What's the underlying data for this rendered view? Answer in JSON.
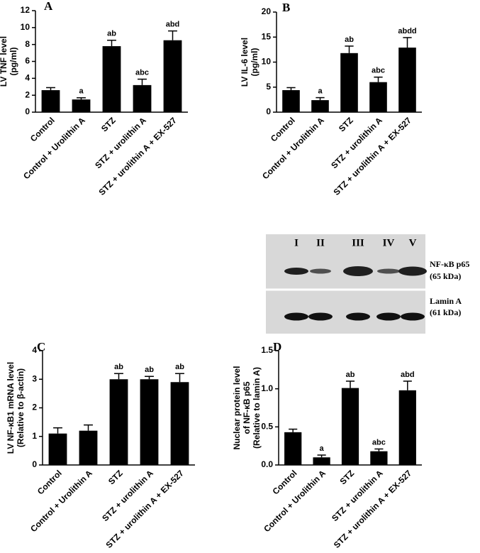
{
  "chart_data": [
    {
      "type": "bar",
      "title": "A",
      "ylabel": [
        "LV TNF level",
        "(pg/ml)"
      ],
      "categories": [
        "Control",
        "Control + Urolithin A",
        "STZ",
        "STZ + urolithin A",
        "STZ + urolithin A + EX-527"
      ],
      "values": [
        2.6,
        1.5,
        7.8,
        3.2,
        8.5
      ],
      "errors": [
        0.3,
        0.2,
        0.7,
        0.7,
        1.1
      ],
      "annotations": [
        null,
        "a",
        "ab",
        "abc",
        "abd"
      ],
      "color": "#000000",
      "ylim": [
        0,
        12
      ],
      "yticks": [
        0,
        2,
        4,
        6,
        8,
        10,
        12
      ]
    },
    {
      "type": "bar",
      "title": "B",
      "ylabel": [
        "LV IL-6 level",
        "(pg/ml)"
      ],
      "categories": [
        "Control",
        "Control + Urolithin A",
        "STZ",
        "STZ + urolithin A",
        "STZ + urolithin A + EX-527"
      ],
      "values": [
        4.4,
        2.4,
        11.8,
        6.0,
        12.9
      ],
      "errors": [
        0.5,
        0.5,
        1.4,
        1.0,
        2.0
      ],
      "annotations": [
        null,
        "a",
        "ab",
        "abc",
        "abdd"
      ],
      "color": "#000000",
      "ylim": [
        0,
        20
      ],
      "yticks": [
        0,
        5,
        10,
        15,
        20
      ]
    },
    {
      "type": "bar",
      "title": "C",
      "ylabel": [
        "LV NF-κB1 mRNA level",
        "(Relative to β-actin)"
      ],
      "categories": [
        "Control",
        "Control + Urolithin A",
        "STZ",
        "STZ + urolithin A",
        "STZ + urolithin A + EX-527"
      ],
      "values": [
        1.1,
        1.2,
        3.0,
        3.0,
        2.9
      ],
      "errors": [
        0.2,
        0.2,
        0.2,
        0.1,
        0.3
      ],
      "annotations": [
        null,
        null,
        "ab",
        "ab",
        "ab"
      ],
      "color": "#000000",
      "ylim": [
        0,
        4
      ],
      "yticks": [
        0,
        1,
        2,
        3,
        4
      ]
    },
    {
      "type": "bar",
      "title": "D",
      "ylabel": [
        "Nuclear protein level",
        "of NF-κB p65",
        "(Relative to lamin A)"
      ],
      "categories": [
        "Control",
        "Control + Urolithin A",
        "STZ",
        "STZ + urolithin A",
        "STZ + urolithin A + EX-527"
      ],
      "values": [
        0.43,
        0.1,
        1.01,
        0.18,
        0.98
      ],
      "errors": [
        0.04,
        0.03,
        0.09,
        0.03,
        0.12
      ],
      "annotations": [
        null,
        "a",
        "ab",
        "abc",
        "abd"
      ],
      "color": "#000000",
      "ylim": [
        0,
        1.5
      ],
      "yticks": [
        {
          "value": 0,
          "label": "0.0"
        },
        {
          "value": 0.5,
          "label": "0.5"
        },
        {
          "value": 1,
          "label": "1.0"
        },
        {
          "value": 1.5,
          "label": "1.5"
        }
      ]
    }
  ],
  "blot": {
    "lanes": [
      "I",
      "II",
      "III",
      "IV",
      "V"
    ],
    "rows": [
      {
        "label": "NF-κB p65",
        "size": "(65 kDa)"
      },
      {
        "label": "Lamin A",
        "size": "(61 kDa)"
      }
    ]
  }
}
